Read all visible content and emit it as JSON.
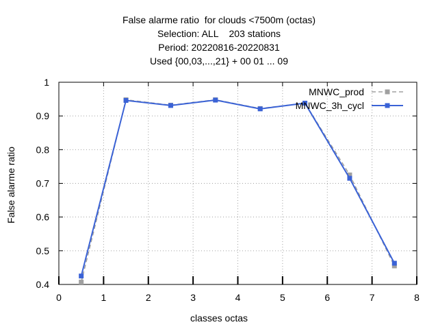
{
  "chart_data": {
    "type": "line",
    "title_lines": [
      "False alarme ratio  for clouds <7500m (octas)",
      "Selection: ALL    203 stations",
      "Period: 20220816-20220831",
      "Used {00,03,...,21} + 00 01 ... 09"
    ],
    "xlabel": "classes octas",
    "ylabel": "False alarme ratio",
    "xlim": [
      0,
      8
    ],
    "ylim": [
      0.4,
      1.0
    ],
    "xticks": [
      "0",
      "1",
      "2",
      "3",
      "4",
      "5",
      "6",
      "7",
      "8"
    ],
    "yticks": [
      "0.4",
      "0.5",
      "0.6",
      "0.7",
      "0.8",
      "0.9",
      "1"
    ],
    "grid": true,
    "legend_position": "top-right",
    "series": [
      {
        "name": "MNWC_prod",
        "color": "#a0a0a0",
        "dashed": true,
        "x": [
          0.5,
          1.5,
          2.5,
          3.5,
          4.5,
          5.5,
          6.5,
          7.5
        ],
        "y": [
          0.407,
          0.948,
          0.932,
          0.948,
          0.922,
          0.938,
          0.725,
          0.455
        ]
      },
      {
        "name": "MNWC_3h_cycl",
        "color": "#3a62d6",
        "dashed": false,
        "x": [
          0.5,
          1.5,
          2.5,
          3.5,
          4.5,
          5.5,
          6.5,
          7.5
        ],
        "y": [
          0.425,
          0.946,
          0.931,
          0.947,
          0.921,
          0.938,
          0.715,
          0.463
        ]
      }
    ]
  }
}
